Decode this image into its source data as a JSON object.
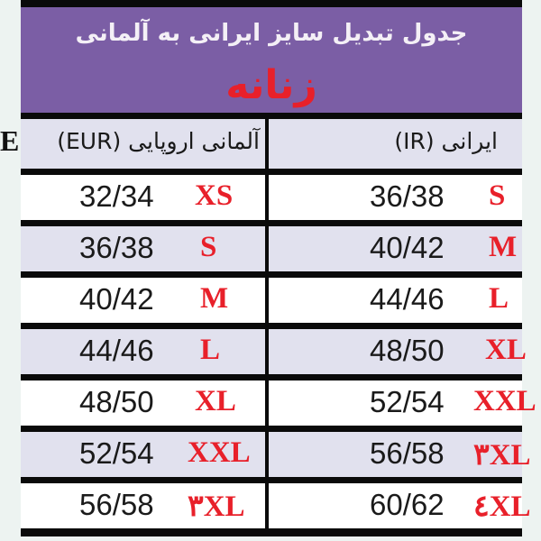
{
  "title": "جدول تبدیل سایز ایرانی به آلمانی",
  "subtitle": "زنانه",
  "headers": {
    "left": "آلمانی اروپایی (EUR)",
    "left_overflow": "E",
    "right": "ایرانی (IR)"
  },
  "colors": {
    "banner": "#7b5ea5",
    "accent_red": "#e8202a",
    "alt_row": "#e1e1ee"
  },
  "rows": [
    {
      "eur_size": "32/34",
      "eur_label": "XS",
      "ir_size": "36/38",
      "ir_label": "S"
    },
    {
      "eur_size": "36/38",
      "eur_label": "S",
      "ir_size": "40/42",
      "ir_label": "M"
    },
    {
      "eur_size": "40/42",
      "eur_label": "M",
      "ir_size": "44/46",
      "ir_label": "L"
    },
    {
      "eur_size": "44/46",
      "eur_label": "L",
      "ir_size": "48/50",
      "ir_label": "XL"
    },
    {
      "eur_size": "48/50",
      "eur_label": "XL",
      "ir_size": "52/54",
      "ir_label": "XXL"
    },
    {
      "eur_size": "52/54",
      "eur_label": "XXL",
      "ir_size": "56/58",
      "ir_label": "٣XL"
    },
    {
      "eur_size": "56/58",
      "eur_label": "٣XL",
      "ir_size": "60/62",
      "ir_label": "٤XL"
    }
  ]
}
